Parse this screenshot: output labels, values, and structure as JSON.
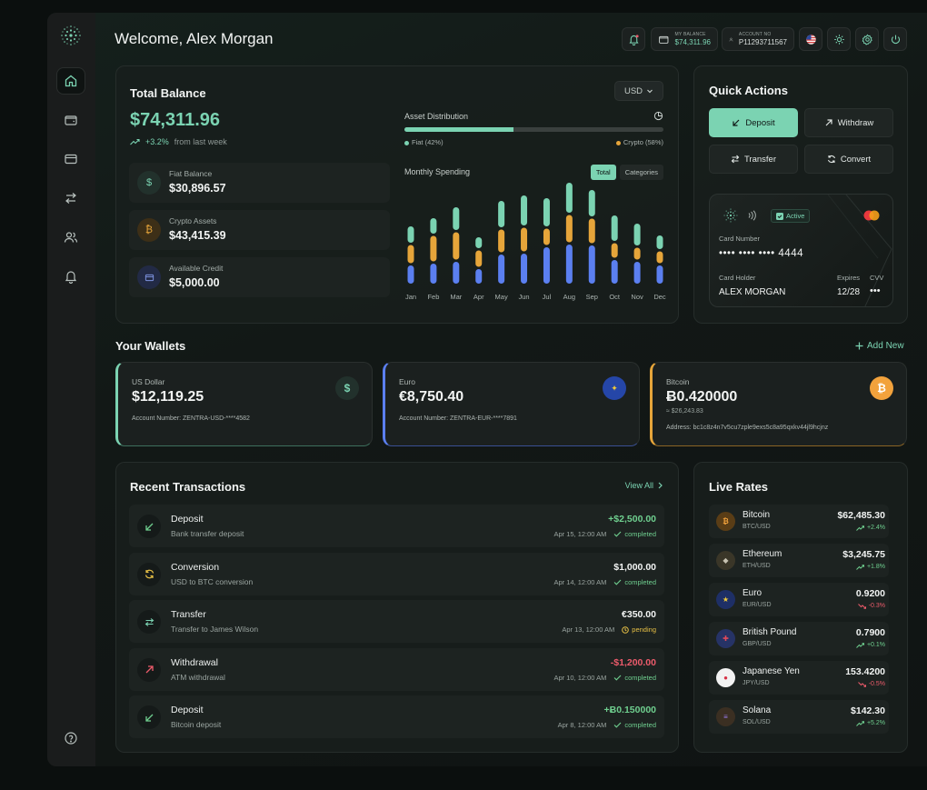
{
  "header": {
    "welcome": "Welcome, Alex Morgan",
    "balance_label": "MY BALANCE",
    "balance_value": "$74,311.96",
    "account_label": "ACCOUNT NO",
    "account_value": "P11293711567"
  },
  "total_balance": {
    "title": "Total Balance",
    "currency": "USD",
    "amount": "$74,311.96",
    "change": "+3.2%",
    "change_note": "from last week",
    "rows": [
      {
        "label": "Fiat Balance",
        "value": "$30,896.57",
        "icon": "dollar-icon"
      },
      {
        "label": "Crypto Assets",
        "value": "$43,415.39",
        "icon": "bitcoin-icon"
      },
      {
        "label": "Available Credit",
        "value": "$5,000.00",
        "icon": "credit-card-icon"
      }
    ],
    "distribution_title": "Asset Distribution",
    "fiat_label": "Fiat (42%)",
    "crypto_label": "Crypto (58%)",
    "fiat_fraction": 0.42,
    "spending_title": "Monthly Spending",
    "toggle_total": "Total",
    "toggle_categories": "Categories"
  },
  "chart_data": {
    "type": "bar",
    "categories": [
      "Jan",
      "Feb",
      "Mar",
      "Apr",
      "May",
      "Jun",
      "Jul",
      "Aug",
      "Sep",
      "Oct",
      "Nov",
      "Dec"
    ],
    "series": [
      {
        "values": [
          20,
          22,
          24,
          16,
          32,
          33,
          40,
          43,
          42,
          26,
          24,
          20
        ],
        "color": "#5b7ff0"
      },
      {
        "values": [
          20,
          28,
          30,
          18,
          25,
          26,
          18,
          30,
          27,
          16,
          13,
          13
        ],
        "color": "#e6a53a"
      },
      {
        "values": [
          18,
          17,
          25,
          12,
          29,
          33,
          31,
          33,
          29,
          28,
          24,
          15
        ],
        "color": "#7bd3b2"
      }
    ],
    "stacked": true,
    "grid": false
  },
  "quick_actions": {
    "title": "Quick Actions",
    "deposit": "Deposit",
    "withdraw": "Withdraw",
    "transfer": "Transfer",
    "convert": "Convert",
    "card": {
      "status": "Active",
      "number_label": "Card Number",
      "number": "•••• •••• •••• 4444",
      "holder_label": "Card Holder",
      "holder": "ALEX MORGAN",
      "expires_label": "Expires",
      "expires": "12/28",
      "cvv_label": "CVV",
      "cvv": "•••"
    }
  },
  "wallets": {
    "title": "Your Wallets",
    "add_new": "Add New",
    "items": [
      {
        "name": "US Dollar",
        "amount": "$12,119.25",
        "sub": "",
        "detail": "Account Number: ZENTRA-USD-****4582",
        "accent": "#7bd3b2",
        "icon_color": "#22312c",
        "icon_text": "$",
        "icon_fg": "#7bd3b2"
      },
      {
        "name": "Euro",
        "amount": "€8,750.40",
        "sub": "",
        "detail": "Account Number: ZENTRA-EUR-****7891",
        "accent": "#5b7ff0",
        "icon_color": "#2546a8",
        "icon_text": "★",
        "icon_fg": "#f0c93a"
      },
      {
        "name": "Bitcoin",
        "amount": "Ƀ0.420000",
        "sub": "≈ $26,243.83",
        "detail": "Address: bc1c8z4n7v5cu7zple9exs5c8a95qxkv44jl9hcjnz",
        "accent": "#e6a53a",
        "icon_color": "#f2a23c",
        "icon_text": "₿",
        "icon_fg": "#ffffff"
      }
    ]
  },
  "transactions": {
    "title": "Recent Transactions",
    "view_all": "View All",
    "items": [
      {
        "title": "Deposit",
        "sub": "Bank transfer deposit",
        "amount": "+$2,500.00",
        "date": "Apr 15, 12:00 AM",
        "status": "completed",
        "tone": "in"
      },
      {
        "title": "Conversion",
        "sub": "USD to BTC conversion",
        "amount": "$1,000.00",
        "date": "Apr 14, 12:00 AM",
        "status": "completed",
        "tone": "neutral"
      },
      {
        "title": "Transfer",
        "sub": "Transfer to James Wilson",
        "amount": "€350.00",
        "date": "Apr 13, 12:00 AM",
        "status": "pending",
        "tone": "neutral"
      },
      {
        "title": "Withdrawal",
        "sub": "ATM withdrawal",
        "amount": "-$1,200.00",
        "date": "Apr 10, 12:00 AM",
        "status": "completed",
        "tone": "out"
      },
      {
        "title": "Deposit",
        "sub": "Bitcoin deposit",
        "amount": "+Ƀ0.150000",
        "date": "Apr 8, 12:00 AM",
        "status": "completed",
        "tone": "in"
      }
    ]
  },
  "live_rates": {
    "title": "Live Rates",
    "items": [
      {
        "name": "Bitcoin",
        "pair": "BTC/USD",
        "price": "$62,485.30",
        "change": "+2.4%",
        "dir": "up",
        "icon_bg": "#5a3d16",
        "icon_fg": "#f2a23c",
        "glyph": "₿"
      },
      {
        "name": "Ethereum",
        "pair": "ETH/USD",
        "price": "$3,245.75",
        "change": "+1.8%",
        "dir": "up",
        "icon_bg": "#3a3628",
        "icon_fg": "#c7c2b1",
        "glyph": "◆"
      },
      {
        "name": "Euro",
        "pair": "EUR/USD",
        "price": "0.9200",
        "change": "-0.3%",
        "dir": "down",
        "icon_bg": "#1e2f66",
        "icon_fg": "#f0c93a",
        "glyph": "★"
      },
      {
        "name": "British Pound",
        "pair": "GBP/USD",
        "price": "0.7900",
        "change": "+0.1%",
        "dir": "up",
        "icon_bg": "#263366",
        "icon_fg": "#e24a5a",
        "glyph": "✚"
      },
      {
        "name": "Japanese Yen",
        "pair": "JPY/USD",
        "price": "153.4200",
        "change": "-0.5%",
        "dir": "down",
        "icon_bg": "#f2f2f2",
        "icon_fg": "#d63045",
        "glyph": "●"
      },
      {
        "name": "Solana",
        "pair": "SOL/USD",
        "price": "$142.30",
        "change": "+5.2%",
        "dir": "up",
        "icon_bg": "#3b2f22",
        "icon_fg": "#9b7cf0",
        "glyph": "≡"
      }
    ]
  }
}
